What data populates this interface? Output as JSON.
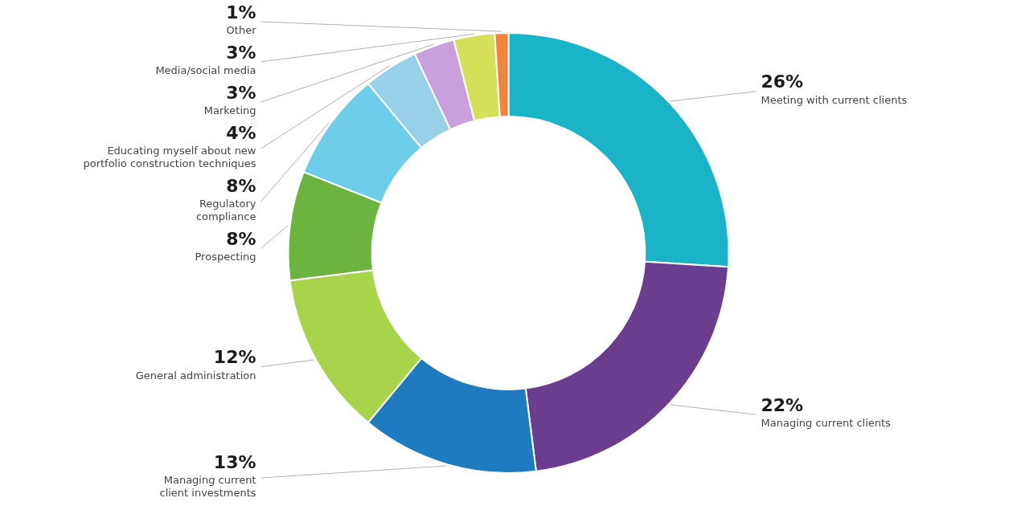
{
  "chart_data": {
    "type": "doughnut",
    "categories": [
      "Meeting with current clients",
      "Managing current clients",
      "Managing current\nclient investments",
      "General administration",
      "Prospecting",
      "Regulatory\ncompliance",
      "Educating myself about new\nportfolio construction techniques",
      "Marketing",
      "Media/social media",
      "Other"
    ],
    "values": [
      26,
      22,
      13,
      12,
      8,
      8,
      4,
      3,
      3,
      1
    ],
    "value_labels": [
      "26%",
      "22%",
      "13%",
      "12%",
      "8%",
      "8%",
      "4%",
      "3%",
      "3%",
      "1%"
    ],
    "colors": [
      "#1ab3c8",
      "#6b3d8f",
      "#1e7bbf",
      "#a8d44c",
      "#6db33f",
      "#6ecde8",
      "#97d0e8",
      "#c9a0dc",
      "#d4e158",
      "#f0843c"
    ],
    "data_labels": true
  }
}
